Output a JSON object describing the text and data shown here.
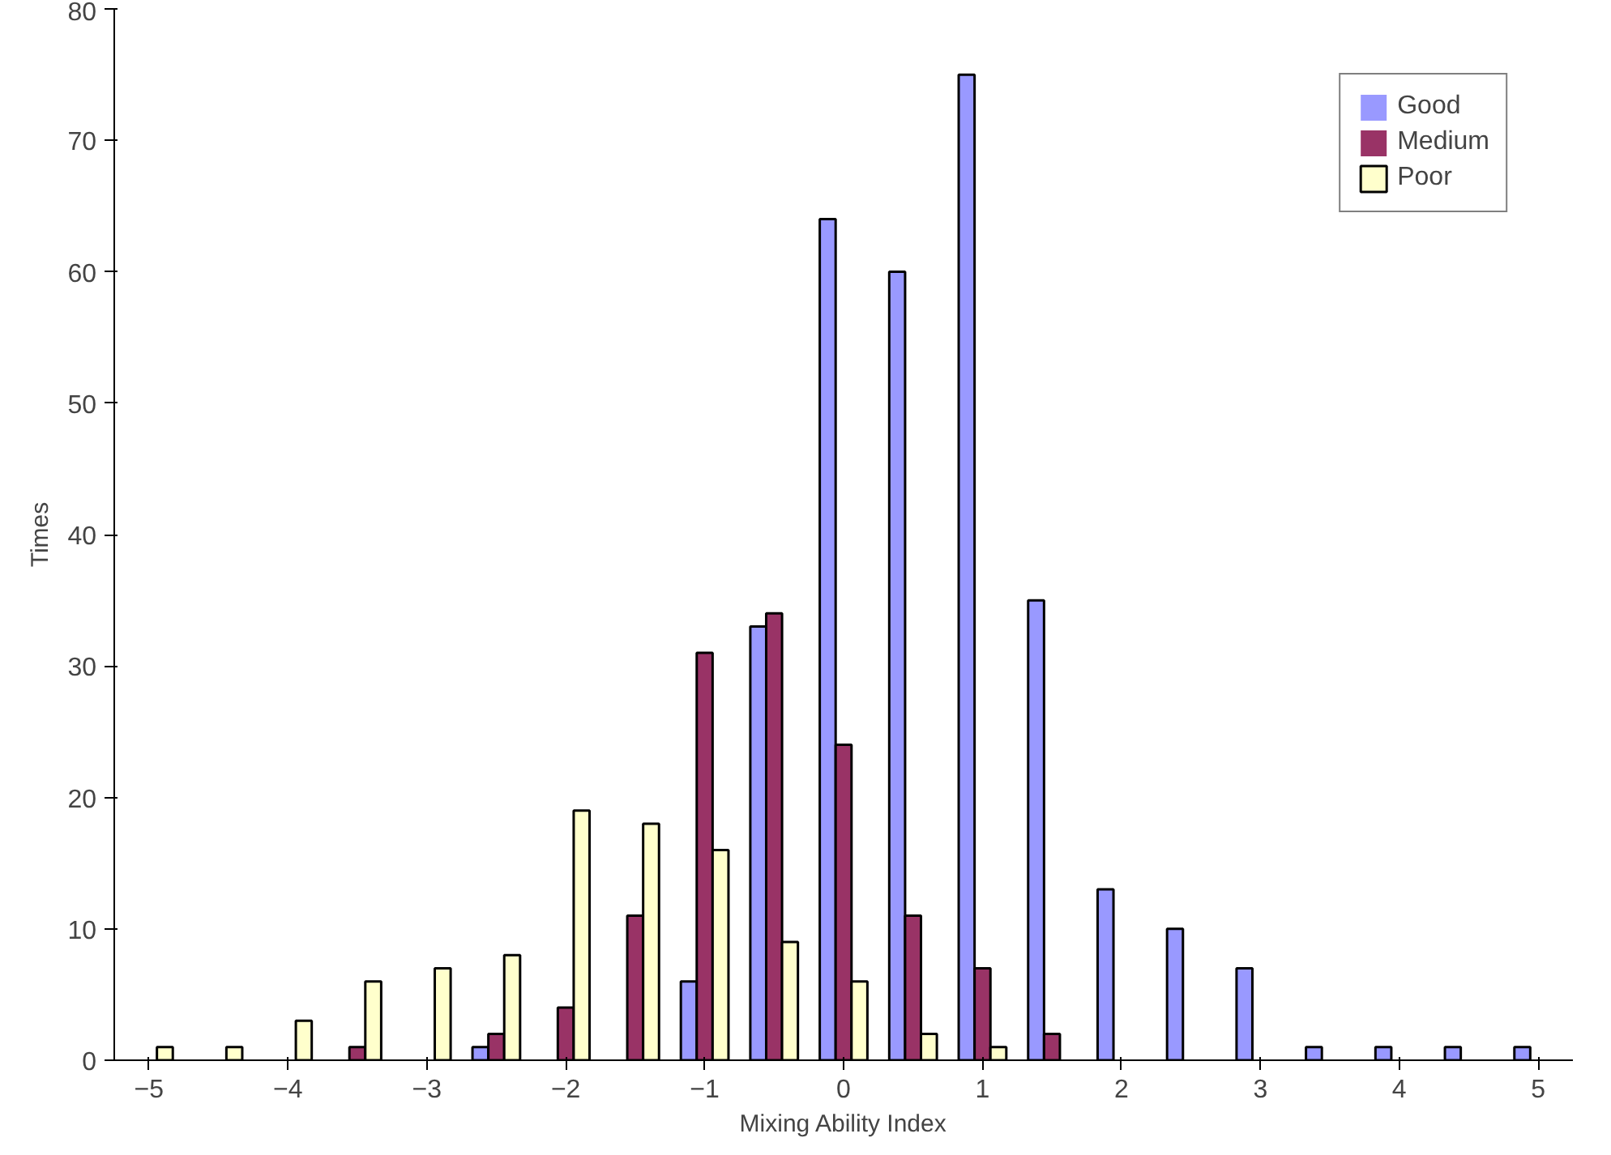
{
  "chart_data": {
    "type": "bar",
    "xlabel": "Mixing Ability Index",
    "ylabel": "Times",
    "categories": [
      "−5",
      null,
      "−4",
      null,
      "−3",
      null,
      "−2",
      null,
      "−1",
      null,
      "0",
      null,
      "1",
      null,
      "2",
      null,
      "3",
      null,
      "4",
      null,
      "5"
    ],
    "series": [
      {
        "name": "Good",
        "color": "#9999ff",
        "values": [
          0,
          0,
          0,
          0,
          0,
          1,
          0,
          0,
          6,
          33,
          64,
          60,
          75,
          35,
          13,
          10,
          7,
          1,
          1,
          1,
          1
        ]
      },
      {
        "name": "Medium",
        "color": "#993366",
        "values": [
          0,
          0,
          0,
          1,
          0,
          2,
          4,
          11,
          31,
          34,
          24,
          11,
          7,
          2,
          0,
          0,
          0,
          0,
          0,
          0,
          0
        ]
      },
      {
        "name": "Poor",
        "color": "#ffffcc",
        "values": [
          1,
          1,
          3,
          6,
          7,
          8,
          19,
          18,
          16,
          9,
          6,
          2,
          1,
          0,
          0,
          0,
          0,
          0,
          0,
          0,
          0
        ]
      }
    ],
    "ylim": [
      0,
      80
    ],
    "yticks": [
      0,
      10,
      20,
      30,
      40,
      50,
      60,
      70,
      80
    ],
    "grid": false,
    "legend": "top right"
  }
}
